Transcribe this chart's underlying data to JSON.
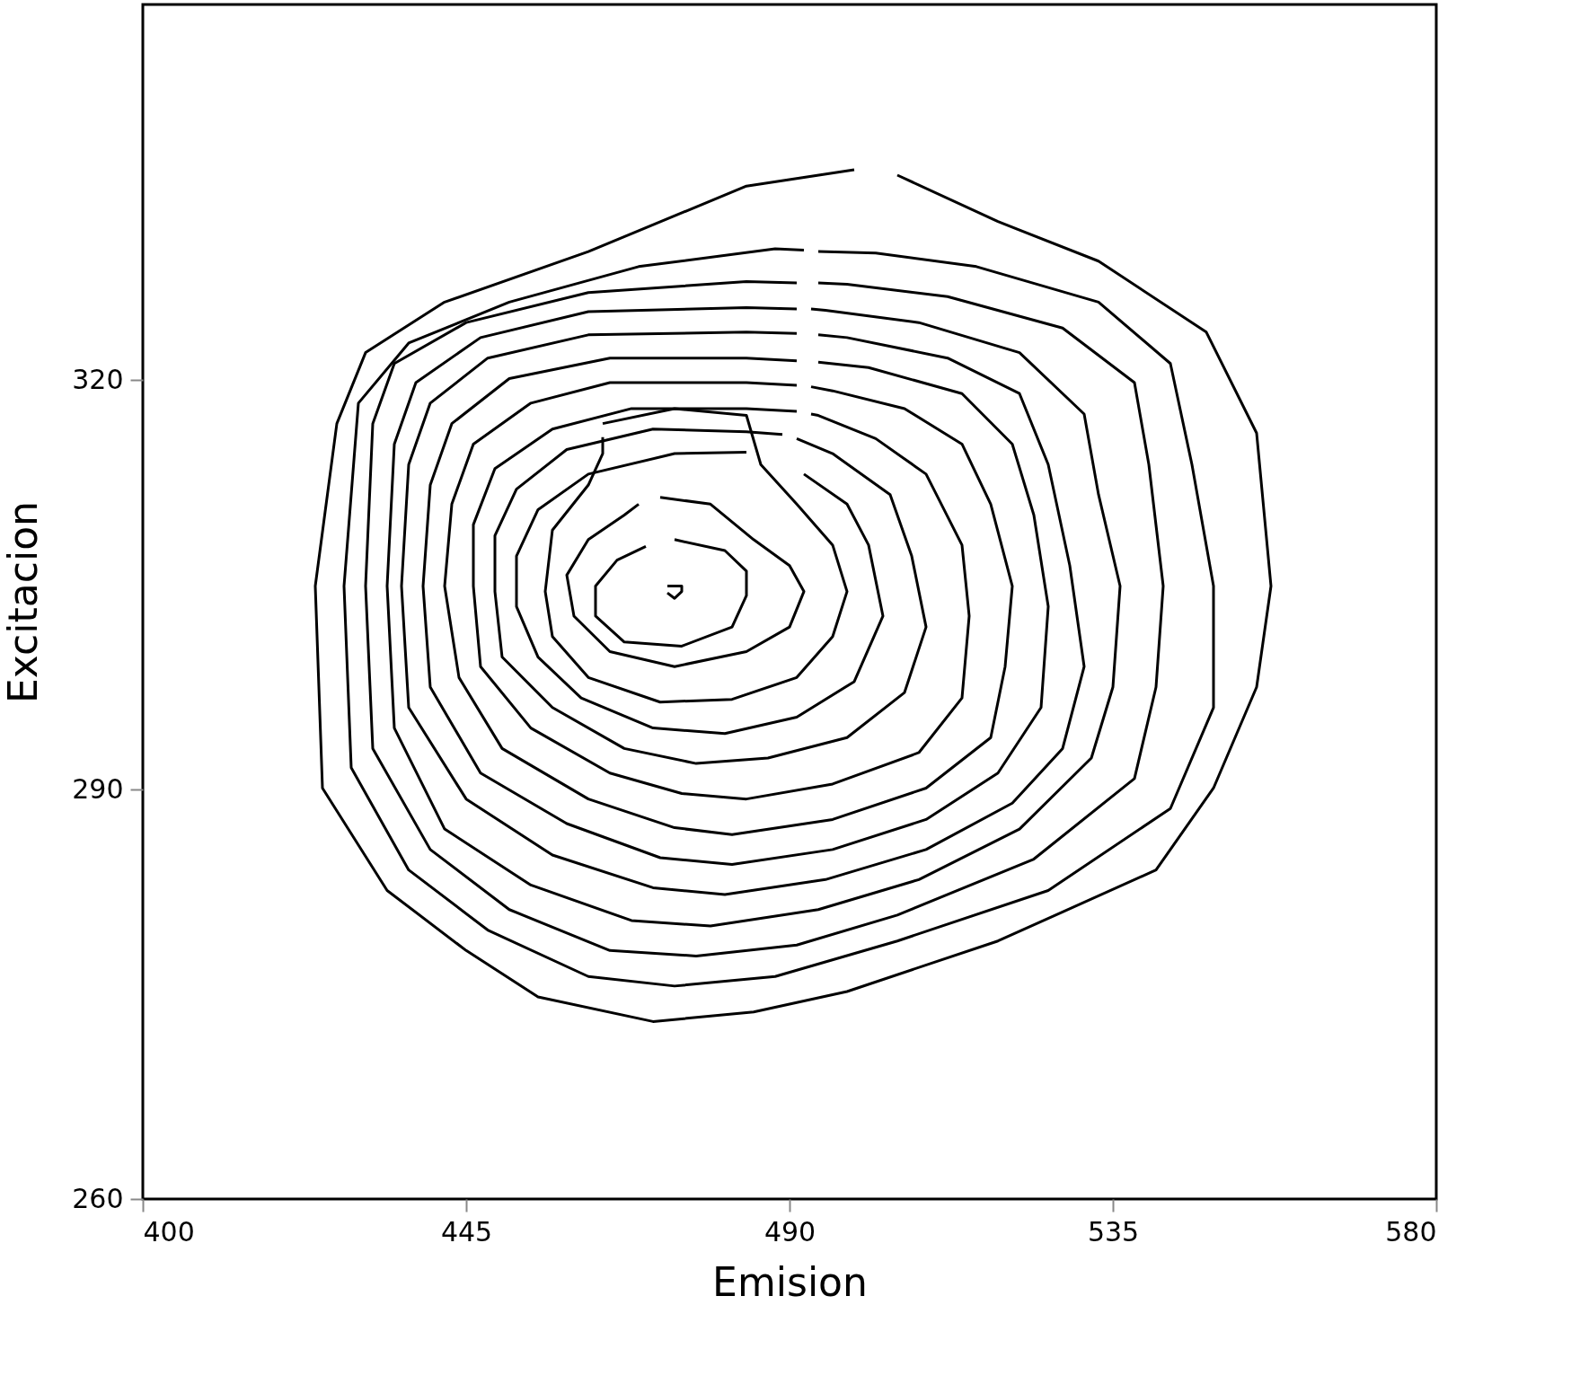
{
  "chart_data": {
    "type": "line",
    "xlabel": "Emision",
    "ylabel": "Excitacion",
    "xlim": [
      400,
      580
    ],
    "xticks": [
      400,
      445,
      490,
      535,
      580
    ],
    "ylim": [
      260,
      347.5
    ],
    "yticks": [
      260,
      290,
      320
    ],
    "grid": false,
    "legend": false,
    "marker": "none",
    "line_style": "solid",
    "series": [
      {
        "color": "#000000",
        "x": [
          499,
          484,
          462,
          442,
          431,
          427,
          424,
          425,
          434,
          445,
          455,
          471,
          485,
          498,
          519,
          541,
          549,
          555,
          557,
          555,
          548,
          533,
          519,
          505
        ],
        "values": [
          335.4,
          334.2,
          329.4,
          325.7,
          322.0,
          316.8,
          304.9,
          290.1,
          282.6,
          278.2,
          274.8,
          273.0,
          273.7,
          275.2,
          278.9,
          284.1,
          290.1,
          297.5,
          304.9,
          316.1,
          323.5,
          328.7,
          331.6,
          335.0
        ]
      },
      {
        "color": "#000000",
        "x": [
          492,
          488,
          469,
          451,
          437,
          430,
          428,
          429,
          437,
          448,
          462,
          474,
          488,
          505,
          526,
          543,
          549,
          549,
          546,
          543,
          533,
          516,
          502,
          494
        ],
        "values": [
          329.5,
          329.6,
          328.3,
          325.7,
          322.7,
          318.3,
          304.9,
          291.6,
          284.1,
          279.7,
          276.3,
          275.6,
          276.3,
          278.9,
          282.6,
          288.6,
          296.0,
          304.9,
          313.8,
          321.2,
          325.7,
          328.3,
          329.3,
          329.4
        ]
      },
      {
        "color": "#000000",
        "x": [
          491,
          484,
          462,
          445,
          435,
          432,
          431,
          432,
          440,
          451,
          465,
          477,
          491,
          505,
          524,
          538,
          541,
          542,
          540,
          538,
          528,
          512,
          498,
          494
        ],
        "values": [
          327.1,
          327.2,
          326.4,
          324.2,
          321.2,
          316.8,
          304.9,
          293.0,
          285.6,
          281.2,
          278.2,
          277.8,
          278.6,
          280.8,
          284.9,
          290.8,
          297.5,
          304.9,
          313.8,
          319.8,
          323.8,
          326.1,
          327.0,
          327.1
        ]
      },
      {
        "color": "#000000",
        "x": [
          491,
          484,
          462,
          447,
          438,
          435,
          434,
          435,
          442,
          454,
          468,
          479,
          494,
          508,
          522,
          532,
          535,
          536,
          533,
          531,
          522,
          508,
          495,
          493
        ],
        "values": [
          325.2,
          325.3,
          325.0,
          323.1,
          319.8,
          315.3,
          304.9,
          294.5,
          287.1,
          283.0,
          280.4,
          280.0,
          281.2,
          283.4,
          287.1,
          292.3,
          297.5,
          304.9,
          311.6,
          317.5,
          322.0,
          324.2,
          325.1,
          325.2
        ]
      },
      {
        "color": "#000000",
        "x": [
          491,
          484,
          462,
          448,
          440,
          437,
          436,
          437,
          445,
          457,
          471,
          481,
          495,
          509,
          521,
          528,
          531,
          529,
          526,
          522,
          512,
          498,
          494
        ],
        "values": [
          323.4,
          323.5,
          323.3,
          321.6,
          318.3,
          313.8,
          304.9,
          296.0,
          289.3,
          285.2,
          282.8,
          282.3,
          283.4,
          285.6,
          289.0,
          293.0,
          299.0,
          306.4,
          313.8,
          319.0,
          321.6,
          323.1,
          323.3
        ]
      },
      {
        "color": "#000000",
        "x": [
          491,
          484,
          465,
          451,
          443,
          440,
          439,
          440,
          447,
          459,
          472,
          482,
          496,
          509,
          519,
          525,
          526,
          524,
          521,
          514,
          501,
          494
        ],
        "values": [
          321.4,
          321.6,
          321.6,
          320.1,
          316.8,
          312.3,
          304.9,
          297.5,
          291.2,
          287.5,
          285.0,
          284.5,
          285.6,
          287.8,
          291.2,
          296.0,
          303.4,
          310.1,
          315.3,
          319.0,
          320.9,
          321.3
        ]
      },
      {
        "color": "#000000",
        "x": [
          491,
          484,
          465,
          454,
          446,
          443,
          442,
          444,
          450,
          462,
          474,
          482,
          496,
          509,
          518,
          520,
          521,
          518,
          514,
          506,
          496,
          493
        ],
        "values": [
          319.6,
          319.8,
          319.8,
          318.3,
          315.3,
          310.9,
          304.9,
          298.2,
          293.0,
          289.3,
          287.2,
          286.7,
          287.8,
          290.1,
          293.8,
          299.0,
          304.9,
          310.9,
          315.3,
          317.9,
          319.2,
          319.5
        ]
      },
      {
        "color": "#000000",
        "x": [
          491,
          484,
          468,
          457,
          449,
          446,
          446,
          447,
          454,
          465,
          475,
          484,
          496,
          508,
          514,
          515,
          514,
          509,
          502,
          494,
          493
        ],
        "values": [
          317.7,
          317.9,
          317.9,
          316.4,
          313.5,
          309.4,
          304.9,
          299.0,
          294.5,
          291.2,
          289.7,
          289.3,
          290.4,
          292.7,
          296.7,
          302.7,
          307.9,
          313.1,
          315.7,
          317.4,
          317.5
        ]
      },
      {
        "color": "#000000",
        "x": [
          489,
          484,
          471,
          459,
          452,
          449,
          449,
          450,
          457,
          467,
          477,
          487,
          498,
          506,
          509,
          507,
          504,
          496,
          491
        ],
        "values": [
          316.0,
          316.2,
          316.4,
          314.9,
          312.0,
          308.6,
          304.5,
          299.7,
          296.0,
          293.0,
          291.9,
          292.3,
          293.8,
          297.1,
          301.9,
          307.1,
          311.6,
          314.6,
          315.7
        ]
      },
      {
        "color": "#000000",
        "x": [
          484,
          474,
          462,
          455,
          452,
          452,
          455,
          461,
          471,
          481,
          491,
          499,
          503,
          501,
          498,
          492
        ],
        "values": [
          314.7,
          314.6,
          313.1,
          310.5,
          307.1,
          303.4,
          299.7,
          296.7,
          294.5,
          294.1,
          295.3,
          297.9,
          302.7,
          307.9,
          310.9,
          313.1
        ]
      },
      {
        "color": "#000000",
        "x": [
          464,
          474,
          484,
          486,
          491,
          496,
          498,
          496,
          491,
          482,
          472,
          462,
          457,
          456,
          457,
          462,
          464,
          464
        ],
        "values": [
          316.8,
          317.9,
          317.4,
          313.8,
          310.9,
          307.9,
          304.5,
          301.2,
          298.2,
          296.6,
          296.4,
          298.2,
          301.2,
          304.5,
          309.0,
          312.3,
          314.6,
          315.8
        ]
      },
      {
        "color": "#000000",
        "x": [
          472,
          479,
          485,
          490,
          492,
          490,
          484,
          474,
          465,
          460,
          459,
          462,
          467,
          469
        ],
        "values": [
          311.4,
          310.9,
          308.3,
          306.4,
          304.5,
          301.9,
          300.1,
          299.0,
          300.1,
          302.7,
          305.7,
          308.3,
          310.1,
          310.9
        ]
      },
      {
        "color": "#000000",
        "x": [
          474,
          481,
          484,
          484,
          482,
          475,
          467,
          463,
          463,
          466,
          470
        ],
        "values": [
          308.3,
          307.5,
          306.0,
          304.2,
          301.9,
          300.5,
          300.8,
          302.7,
          304.9,
          306.8,
          307.8
        ]
      },
      {
        "color": "#000000",
        "x": [
          473,
          475,
          475,
          474,
          473
        ],
        "values": [
          304.9,
          304.9,
          304.5,
          304.0,
          304.4
        ]
      }
    ]
  }
}
